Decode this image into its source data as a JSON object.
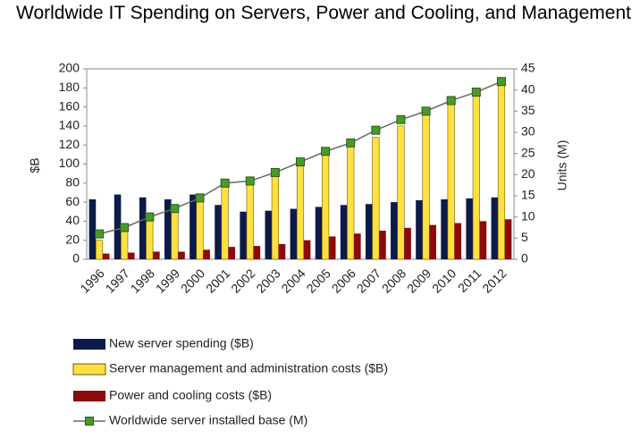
{
  "chart_data": {
    "type": "bar",
    "title": "Worldwide IT Spending on Servers, Power and Cooling, and Management",
    "ylabel": "$B",
    "y2label": "Units (M)",
    "categories": [
      "1996",
      "1997",
      "1998",
      "1999",
      "2000",
      "2001",
      "2002",
      "2003",
      "2004",
      "2005",
      "2006",
      "2007",
      "2008",
      "2009",
      "2010",
      "2011",
      "2012"
    ],
    "series": [
      {
        "name": "New server spending ($B)",
        "color": "#0b1a48",
        "values": [
          63,
          68,
          65,
          63,
          68,
          57,
          50,
          51,
          53,
          55,
          57,
          58,
          60,
          62,
          63,
          64,
          65
        ]
      },
      {
        "name": "Server management and administration costs ($B)",
        "color": "#ffe043",
        "values": [
          20,
          35,
          42,
          55,
          65,
          78,
          80,
          90,
          103,
          112,
          120,
          128,
          140,
          155,
          165,
          175,
          187
        ]
      },
      {
        "name": "Power and cooling costs ($B)",
        "color": "#8b0a0a",
        "values": [
          6,
          7,
          8,
          8,
          10,
          13,
          14,
          16,
          20,
          24,
          27,
          30,
          33,
          36,
          38,
          40,
          42
        ]
      },
      {
        "name": "Worldwide server installed base (M)",
        "color": "#4a9a2a",
        "type": "line",
        "axis": "y2",
        "values": [
          6,
          7.5,
          10,
          12,
          14.5,
          18,
          18.5,
          20.5,
          23,
          25.5,
          27.5,
          30.5,
          33,
          35,
          37.5,
          39.5,
          42
        ]
      }
    ],
    "ylim": [
      0,
      200
    ],
    "yticks": [
      0,
      20,
      40,
      60,
      80,
      100,
      120,
      140,
      160,
      180,
      200
    ],
    "y2lim": [
      0,
      45
    ],
    "y2ticks": [
      0,
      5,
      10,
      15,
      20,
      25,
      30,
      35,
      40,
      45
    ],
    "grid": false
  }
}
